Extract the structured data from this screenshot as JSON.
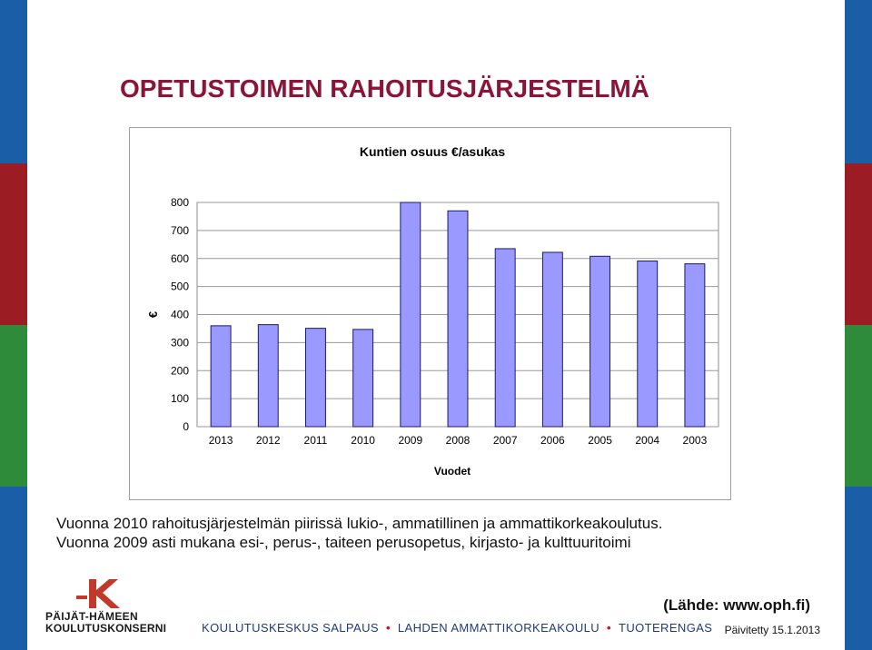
{
  "page": {
    "title": "OPETUSTOIMEN RAHOITUSJÄRJESTELMÄ",
    "caption_line1": "Vuonna 2010 rahoitusjärjestelmän piirissä lukio-, ammatillinen ja ammattikorkeakoulutus.",
    "caption_line2": "Vuonna 2009 asti mukana esi-, perus-, taiteen perusopetus, kirjasto- ja kulttuuritoimi",
    "source": "(Lähde: www.oph.fi)",
    "updated": "Päivitetty 15.1.2013"
  },
  "footer": {
    "logo_line1": "PÄIJÄT-HÄMEEN",
    "logo_line2": "KOULUTUSKONSERNI",
    "org1": "KOULUTUSKESKUS SALPAUS",
    "org2": "LAHDEN AMMATTIKORKEAKOULU",
    "org3": "TUOTERENGAS",
    "separator": "•"
  },
  "colors": {
    "title": "#8b1538",
    "bar_fill": "#9999ff",
    "bar_stroke": "#1a1a6e",
    "edge_blue": "#1a5ea8",
    "edge_red": "#9b1c22",
    "edge_green": "#2e8b3a",
    "logo_red": "#c0392b"
  },
  "chart_data": {
    "type": "bar",
    "title": "Kuntien osuus €/asukas",
    "xlabel": "Vuodet",
    "ylabel": "€",
    "categories": [
      "2013",
      "2012",
      "2011",
      "2010",
      "2009",
      "2008",
      "2007",
      "2006",
      "2005",
      "2004",
      "2003"
    ],
    "values": [
      360,
      364,
      351,
      347,
      800,
      770,
      635,
      622,
      608,
      591,
      581
    ],
    "ylim": [
      0,
      800
    ],
    "yticks": [
      0,
      100,
      200,
      300,
      400,
      500,
      600,
      700,
      800
    ],
    "grid": true,
    "legend": "none"
  }
}
